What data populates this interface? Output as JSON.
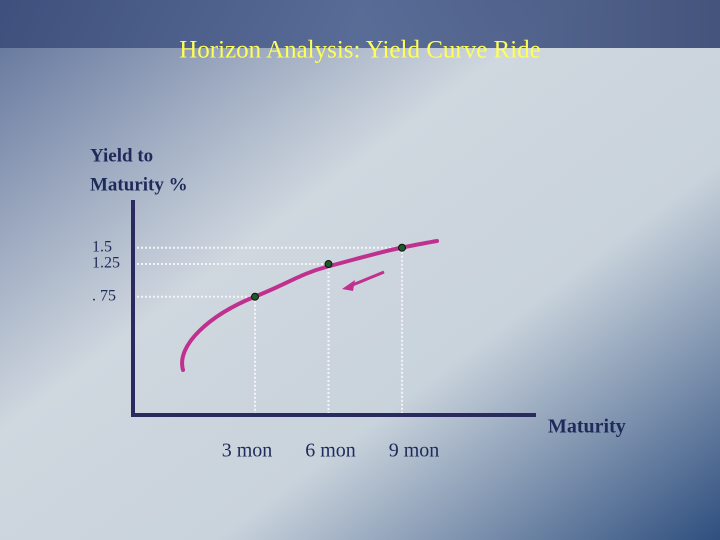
{
  "chart_data": {
    "type": "line",
    "title": "Horizon Analysis: Yield Curve Ride",
    "y_label": [
      "Yield to",
      "Maturity %"
    ],
    "x_label": "Maturity",
    "categories": [
      "3 mon",
      "6 mon",
      "9 mon"
    ],
    "values": [
      0.75,
      1.25,
      1.5
    ],
    "color": "#c0308f",
    "ylim": [
      -1.06,
      2.23
    ],
    "yticks": [
      1.5,
      1.25,
      {
        "value": 0.75,
        "label": ". 75"
      }
    ]
  }
}
